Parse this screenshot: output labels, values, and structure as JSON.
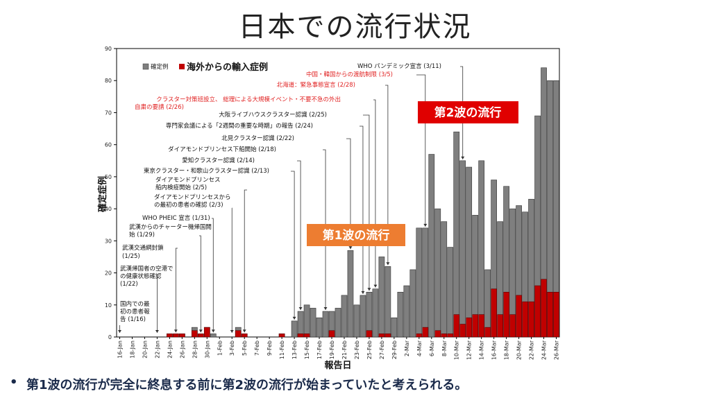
{
  "page": {
    "title": "日本での流行状況",
    "bullet_marker": "•",
    "bullet_text": "第1波の流行が完全に終息する前に第2波の流行が始まっていたと考えられる。"
  },
  "colors": {
    "total": "#7f7f7f",
    "imported": "#c00000",
    "wave1": "#ed7d31",
    "wave2": "#e00000",
    "red_text": "#e02020"
  },
  "chart_data": {
    "type": "bar",
    "title": "",
    "xlabel": "報告日",
    "ylabel": "確定症例",
    "ylim": [
      0,
      90
    ],
    "yticks": [
      0,
      10,
      20,
      30,
      40,
      50,
      60,
      70,
      80,
      90
    ],
    "grid": false,
    "legend": [
      {
        "name": "確定例",
        "color": "#7f7f7f"
      },
      {
        "name": "海外からの輸入症例",
        "color": "#c00000"
      }
    ],
    "legend_placement": "top-left",
    "x_tick_labels": [
      "16-Jan",
      "18-Jan",
      "20-Jan",
      "22-Jan",
      "24-Jan",
      "26-Jan",
      "28-Jan",
      "30-Jan",
      "1-Feb",
      "3-Feb",
      "5-Feb",
      "7-Feb",
      "9-Feb",
      "11-Feb",
      "13-Feb",
      "15-Feb",
      "17-Feb",
      "19-Feb",
      "21-Feb",
      "23-Feb",
      "25-Feb",
      "27-Feb",
      "29-Feb",
      "2-Mar",
      "4-Mar",
      "6-Mar",
      "8-Mar",
      "10-Mar",
      "12-Mar",
      "14-Mar",
      "16-Mar",
      "18-Mar",
      "20-Mar",
      "22-Mar",
      "24-Mar",
      "26-Mar"
    ],
    "categories": [
      "1/16",
      "1/17",
      "1/18",
      "1/19",
      "1/20",
      "1/21",
      "1/22",
      "1/23",
      "1/24",
      "1/25",
      "1/26",
      "1/27",
      "1/28",
      "1/29",
      "1/30",
      "1/31",
      "2/1",
      "2/2",
      "2/3",
      "2/4",
      "2/5",
      "2/6",
      "2/7",
      "2/8",
      "2/9",
      "2/10",
      "2/11",
      "2/12",
      "2/13",
      "2/14",
      "2/15",
      "2/16",
      "2/17",
      "2/18",
      "2/19",
      "2/20",
      "2/21",
      "2/22",
      "2/23",
      "2/24",
      "2/25",
      "2/26",
      "2/27",
      "2/28",
      "2/29",
      "3/1",
      "3/2",
      "3/3",
      "3/4",
      "3/5",
      "3/6",
      "3/7",
      "3/8",
      "3/9",
      "3/10",
      "3/11",
      "3/12",
      "3/13",
      "3/14",
      "3/15",
      "3/16",
      "3/17",
      "3/18",
      "3/19",
      "3/20",
      "3/21",
      "3/22",
      "3/23",
      "3/24",
      "3/25",
      "3/26"
    ],
    "series": [
      {
        "name": "確定例",
        "values": [
          0,
          0,
          0,
          0,
          0,
          0,
          0,
          0,
          1,
          1,
          1,
          0,
          3,
          1,
          3,
          1,
          0,
          0,
          0,
          3,
          1,
          0,
          0,
          0,
          0,
          0,
          1,
          0,
          5,
          8,
          10,
          9,
          6,
          8,
          8,
          9,
          13,
          27,
          10,
          13,
          14,
          15,
          25,
          22,
          6,
          14,
          16,
          21,
          34,
          34,
          57,
          40,
          36,
          28,
          64,
          55,
          53,
          38,
          55,
          21,
          49,
          36,
          47,
          40,
          41,
          39,
          43,
          69,
          84,
          80,
          80
        ]
      },
      {
        "name": "海外からの輸入症例",
        "values": [
          0,
          0,
          0,
          0,
          0,
          0,
          0,
          0,
          1,
          1,
          1,
          0,
          2,
          1,
          3,
          0,
          0,
          0,
          0,
          2,
          1,
          0,
          0,
          0,
          0,
          0,
          1,
          0,
          0,
          1,
          1,
          0,
          0,
          0,
          2,
          0,
          0,
          0,
          0,
          0,
          2,
          0,
          1,
          1,
          0,
          0,
          0,
          0,
          1,
          3,
          0,
          2,
          1,
          1,
          7,
          4,
          6,
          7,
          7,
          3,
          15,
          7,
          14,
          7,
          13,
          11,
          11,
          16,
          18,
          14,
          14
        ]
      }
    ],
    "annotations": [
      {
        "text": "WHO パンデミック宣言 (3/11)",
        "date_index": 55,
        "red": false
      },
      {
        "text": "中国・韓国からの渡航制限 (3/5)",
        "date_index": 49,
        "red": true
      },
      {
        "text": "北海道：緊急事態宣言 (2/28)",
        "date_index": 43,
        "red": true
      },
      {
        "text": "クラスター対策班設立、 総理による大規模イベント・不要不急の外出",
        "text2": "自粛の要請 (2/26)",
        "date_index": 41,
        "red": true
      },
      {
        "text": "大阪ライブハウスクラスター認識 (2/25)",
        "date_index": 40,
        "red": false
      },
      {
        "text": "専門家会議による「2週間の重要な時期」の報告 (2/24)",
        "date_index": 39,
        "red": false
      },
      {
        "text": "北見クラスター認識 (2/22)",
        "date_index": 37,
        "red": false
      },
      {
        "text": "ダイアモンドプリンセス下船開始 (2/18)",
        "date_index": 33,
        "red": false
      },
      {
        "text": "愛知クラスター認識 (2/14)",
        "date_index": 29,
        "red": false
      },
      {
        "text": "東京クラスター・和歌山クラスター認識 (2/13)",
        "date_index": 28,
        "red": false
      },
      {
        "text": "ダイアモンドプリンセス",
        "text2": "船内検疫開始 (2/5)",
        "date_index": 20,
        "red": false
      },
      {
        "text": "ダイアモンドプリンセスから",
        "text2": "の最初の患者の確認 (2/3)",
        "date_index": 18,
        "red": false
      },
      {
        "text": "WHO PHEIC 宣言 (1/31)",
        "date_index": 15,
        "red": false
      },
      {
        "text": "武漢からのチャーター機帰国開",
        "text2": "始 (1/29)",
        "date_index": 13,
        "red": false
      },
      {
        "text": "武漢交通網封鎖",
        "text2": "(1/25)",
        "date_index": 9,
        "red": false
      },
      {
        "text": "武漢帰国者の空港で",
        "text2": "の健康状態確認",
        "text3": "(1/22)",
        "date_index": 6,
        "red": false
      },
      {
        "text": "国内での最",
        "text2": "初の患者報",
        "text3": "告 (1/16)",
        "date_index": 0,
        "red": false
      }
    ],
    "callouts": [
      {
        "text": "第1波の流行",
        "color": "#ed7d31"
      },
      {
        "text": "第2波の流行",
        "color": "#e00000"
      }
    ]
  }
}
